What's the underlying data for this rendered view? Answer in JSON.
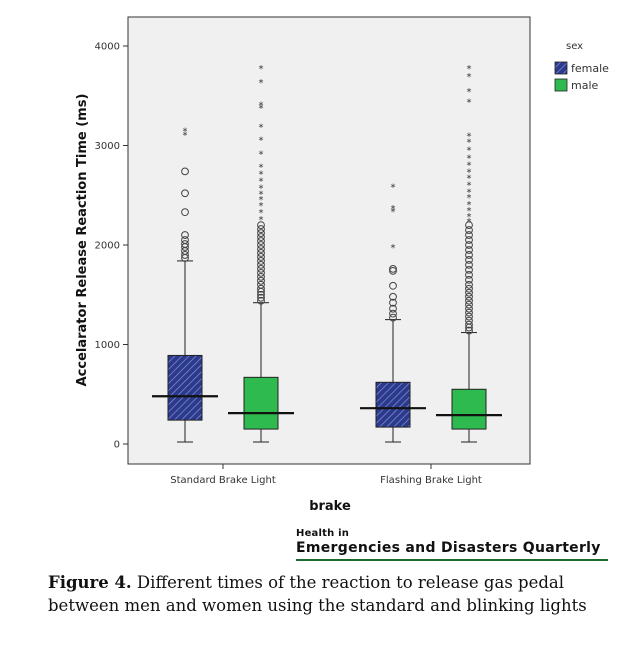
{
  "chart_data": {
    "type": "boxplot",
    "title": "",
    "xlabel": "brake",
    "ylabel": "Accelarator Release Reaction Time (ms)",
    "ylim": [
      -200,
      4200
    ],
    "yticks": [
      0,
      1000,
      2000,
      3000,
      4000
    ],
    "grid": false,
    "legend": {
      "title": "sex",
      "placement": "top-right"
    },
    "categories": [
      "Standard Brake Light",
      "Flashing Brake Light"
    ],
    "series": [
      {
        "name": "female",
        "color": "#2b3a8c",
        "pattern": "hatched",
        "boxes": [
          {
            "category": "Standard Brake Light",
            "min": 20,
            "q1": 240,
            "median": 480,
            "q3": 890,
            "max": 1840,
            "outliers": [
              1870,
              1900,
              1940,
              1980,
              2010,
              2050,
              2100,
              2330,
              2520,
              2740
            ],
            "extremes": [
              3110,
              3150
            ]
          },
          {
            "category": "Flashing Brake Light",
            "min": 20,
            "q1": 170,
            "median": 360,
            "q3": 620,
            "max": 1250,
            "outliers": [
              1270,
              1310,
              1360,
              1420,
              1480,
              1590,
              1740,
              1760
            ],
            "extremes": [
              1980,
              2340,
              2370,
              2590
            ]
          }
        ]
      },
      {
        "name": "male",
        "color": "#2fba4f",
        "pattern": "solid",
        "boxes": [
          {
            "category": "Standard Brake Light",
            "min": 20,
            "q1": 150,
            "median": 310,
            "q3": 670,
            "max": 1420,
            "outliers": [
              1440,
              1470,
              1500,
              1530,
              1560,
              1600,
              1640,
              1680,
              1720,
              1760,
              1800,
              1840,
              1880,
              1920,
              1960,
              2000,
              2040,
              2080,
              2120,
              2160,
              2200
            ],
            "extremes": [
              2260,
              2330,
              2400,
              2460,
              2520,
              2580,
              2650,
              2720,
              2790,
              2920,
              3060,
              3190,
              3380,
              3410,
              3640,
              3780
            ]
          },
          {
            "category": "Flashing Brake Light",
            "min": 20,
            "q1": 150,
            "median": 290,
            "q3": 550,
            "max": 1120,
            "outliers": [
              1140,
              1170,
              1200,
              1240,
              1280,
              1320,
              1360,
              1400,
              1440,
              1480,
              1520,
              1560,
              1600,
              1650,
              1700,
              1750,
              1800,
              1850,
              1900,
              1950,
              2000,
              2050,
              2100,
              2150,
              2200
            ],
            "extremes": [
              2240,
              2290,
              2350,
              2410,
              2480,
              2540,
              2610,
              2680,
              2740,
              2810,
              2880,
              2960,
              3040,
              3100,
              3440,
              3550,
              3700,
              3780
            ]
          }
        ]
      }
    ]
  },
  "journal": {
    "line1": "Health in",
    "line2": "Emergencies and Disasters Quarterly"
  },
  "caption": {
    "label": "Figure 4.",
    "text": " Different times of the reaction to release gas pedal between men and women using the standard and blinking lights"
  }
}
